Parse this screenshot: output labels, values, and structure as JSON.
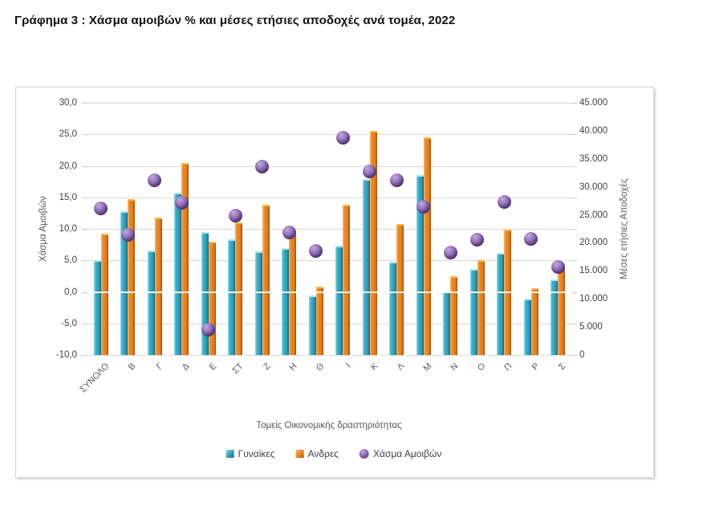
{
  "doc_title": "Γράφημα 3 : Χάσμα αμοιβών % και μέσες ετήσιες αποδοχές ανά τομέα, 2022",
  "colors": {
    "women_bar": "#2B9CB8",
    "men_bar": "#E87D1E",
    "gap_marker": "#7A5BA5",
    "gridline": "#D9D9D9",
    "axis_text": "#404040",
    "label_text": "#595959"
  },
  "chart_data": {
    "type": "bar",
    "title": "Γράφημα 3 : Χάσμα αμοιβών % και μέσες ετήσιες αποδοχές ανά τομέα, 2022",
    "categories": [
      "ΣΥΝΟΛΟ",
      "Β",
      "Γ",
      "Δ",
      "Ε",
      "ΣΤ",
      "Ζ",
      "Η",
      "Θ",
      "Ι",
      "Κ",
      "Λ",
      "Μ",
      "Ν",
      "Ο",
      "Π",
      "Ρ",
      "Σ"
    ],
    "xlabel": "Τομείς Οικονομικής δραστηριότητας",
    "series": [
      {
        "name": "Γυναίκες",
        "type": "bar",
        "axis": "right",
        "values": [
          16900,
          25650,
          18600,
          28900,
          21900,
          20700,
          18550,
          19000,
          10600,
          19450,
          31450,
          16650,
          32050,
          11300,
          15300,
          18200,
          10100,
          13500
        ]
      },
      {
        "name": "Ανδρες",
        "type": "bar",
        "axis": "right",
        "values": [
          21600,
          27800,
          24450,
          34250,
          20200,
          23600,
          26750,
          21600,
          12200,
          26800,
          40050,
          23300,
          38800,
          14000,
          16900,
          22400,
          11900,
          15850
        ]
      },
      {
        "name": "Χάσμα Αμοιβών",
        "type": "scatter",
        "axis": "left",
        "values": [
          13.2,
          9.0,
          17.7,
          14.2,
          -6.0,
          12.1,
          19.9,
          9.4,
          6.5,
          24.4,
          19.1,
          17.7,
          13.5,
          6.2,
          8.3,
          14.3,
          8.4,
          3.9
        ]
      }
    ],
    "left_axis": {
      "title": "Χάσμα Αμοιβών",
      "min": -10,
      "max": 30,
      "step": 5,
      "ticks": [
        "30,0",
        "25,0",
        "20,0",
        "15,0",
        "10,0",
        "5,0",
        "0,0",
        "-5,0",
        "-10,0"
      ]
    },
    "right_axis": {
      "title": "Μέσες ετήσιες Αποδοχές",
      "min": 0,
      "max": 45000,
      "step": 5000,
      "ticks": [
        "45.000",
        "40.000",
        "35.000",
        "30.000",
        "25.000",
        "20.000",
        "15.000",
        "10.000",
        "5.000",
        "0"
      ]
    },
    "grid": true,
    "legend_position": "bottom"
  }
}
